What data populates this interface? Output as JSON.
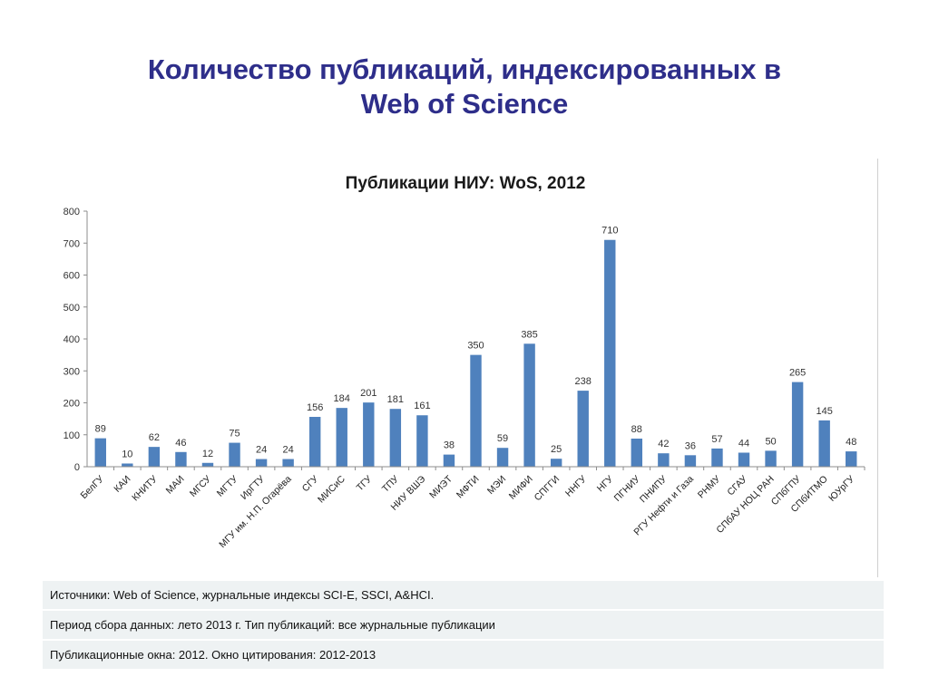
{
  "slide": {
    "title_line1": "Количество публикаций, индексированных в",
    "title_line2": "Web of Science"
  },
  "chart_data": {
    "type": "bar",
    "title": "Публикации НИУ: WoS, 2012",
    "xlabel": "",
    "ylabel": "",
    "ylim": [
      0,
      800
    ],
    "yticks": [
      0,
      100,
      200,
      300,
      400,
      500,
      600,
      700,
      800
    ],
    "grid": false,
    "legend": "none",
    "bar_color": "#4f81bd",
    "categories": [
      "БелГУ",
      "КАИ",
      "КНИТУ",
      "МАИ",
      "МГСУ",
      "МГТУ",
      "ИрГТУ",
      "МГУ им. Н.П. Огарёва",
      "СГУ",
      "МИСиС",
      "ТГУ",
      "ТПУ",
      "НИУ ВШЭ",
      "МИЭТ",
      "МФТИ",
      "МЭИ",
      "МИФИ",
      "СПГГИ",
      "ННГУ",
      "НГУ",
      "ПГНИУ",
      "ПНИПУ",
      "РГУ Нефти и Газа",
      "РНМУ",
      "СГАУ",
      "СПбАУ НОЦ РАН",
      "СПбГПУ",
      "СПбИТМО",
      "ЮУрГУ"
    ],
    "values": [
      89,
      10,
      62,
      46,
      12,
      75,
      24,
      24,
      156,
      184,
      201,
      181,
      161,
      38,
      350,
      59,
      385,
      25,
      238,
      710,
      88,
      42,
      36,
      57,
      44,
      50,
      265,
      145,
      48
    ]
  },
  "notes": [
    "Источники: Web of Science, журнальные индексы SCI-E, SSCI, A&HCI.",
    "Период сбора данных: лето 2013 г. Тип публикаций: все журнальные публикации",
    "Публикационные окна: 2012. Окно цитирования: 2012-2013"
  ]
}
